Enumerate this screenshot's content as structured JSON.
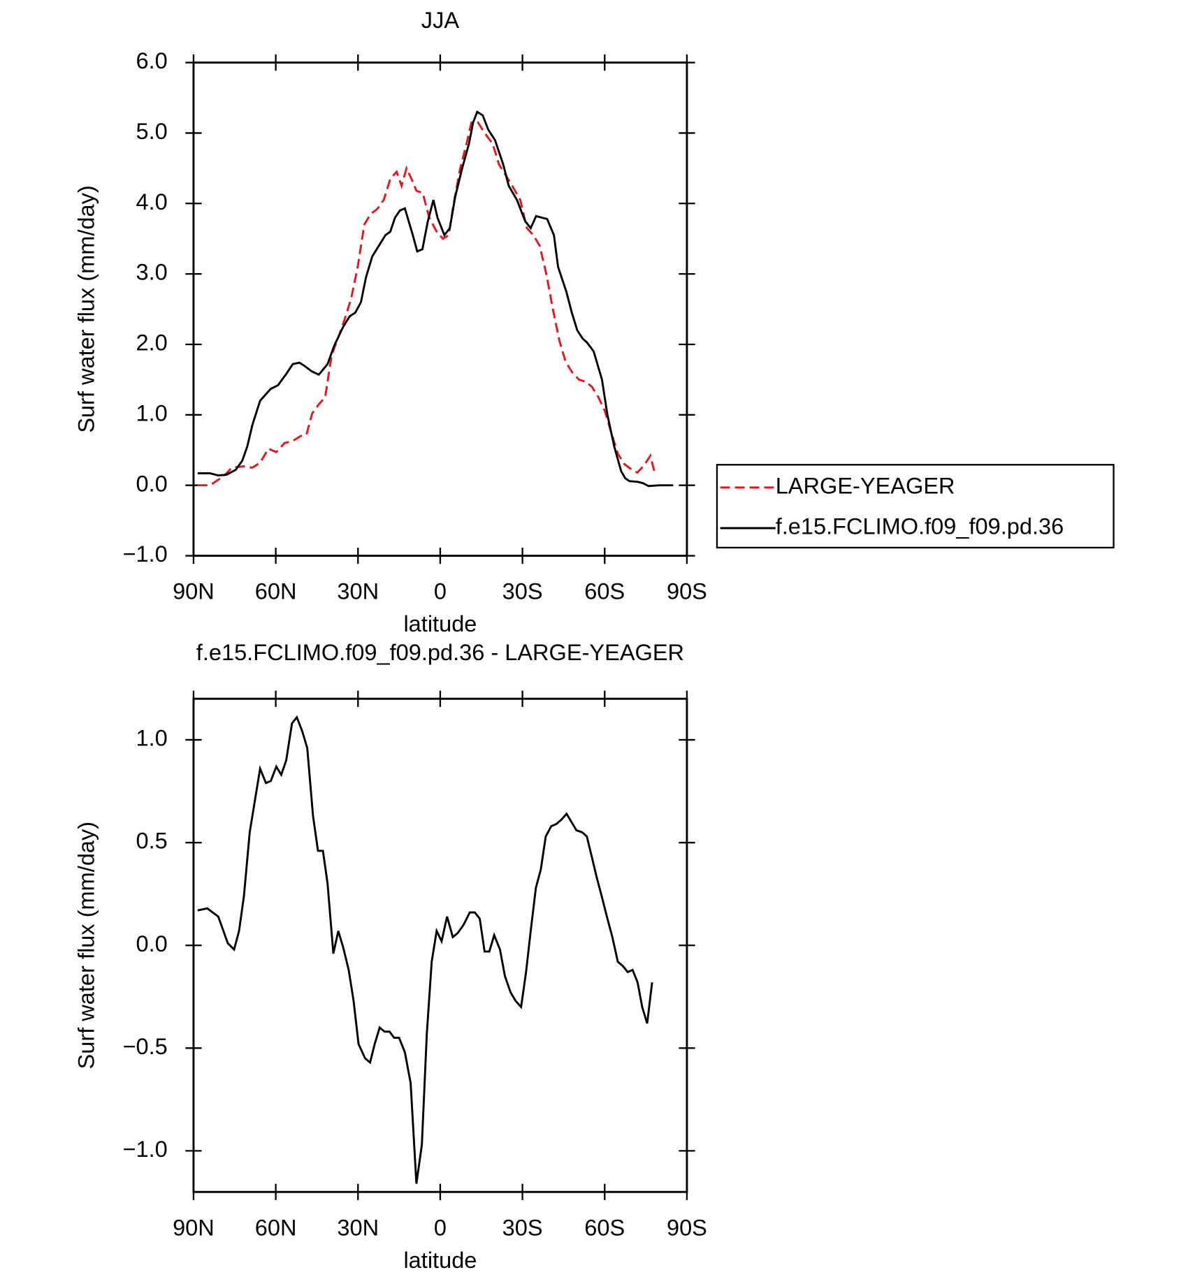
{
  "chart_data": [
    {
      "type": "line",
      "title": "JJA",
      "x_label": "latitude",
      "y_label": "Surf water flux (mm/day)",
      "xlim": [
        90,
        -90
      ],
      "xticks": [
        {
          "value": 90,
          "label": "90N"
        },
        {
          "value": 60,
          "label": "60N"
        },
        {
          "value": 30,
          "label": "30N"
        },
        0,
        {
          "value": -30,
          "label": "30S"
        },
        {
          "value": -60,
          "label": "60S"
        },
        {
          "value": -90,
          "label": "90S"
        }
      ],
      "ylim": [
        -1,
        6
      ],
      "yticks": [
        {
          "value": -1,
          "label": "−1.0"
        },
        {
          "value": 0,
          "label": "0.0"
        },
        {
          "value": 1,
          "label": "1.0"
        },
        {
          "value": 2,
          "label": "2.0"
        },
        {
          "value": 3,
          "label": "3.0"
        },
        {
          "value": 4,
          "label": "4.0"
        },
        {
          "value": 5,
          "label": "5.0"
        },
        {
          "value": 6,
          "label": "6.0"
        }
      ],
      "legend": "right",
      "series": [
        {
          "name": "LARGE-YEAGER",
          "color": "#e8141c",
          "dashed": true,
          "x": [
            88.5,
            84,
            79,
            76,
            71.6,
            68.6,
            65.7,
            62.7,
            59.8,
            56.8,
            53.8,
            50.9,
            48.8,
            46.7,
            44.3,
            42,
            39.6,
            37.2,
            34.9,
            32.5,
            30.1,
            27.7,
            25.4,
            23,
            20.6,
            18.2,
            15.9,
            14.1,
            12.3,
            10.5,
            8.7,
            6.4,
            4,
            1.3,
            -1,
            -3.1,
            -4.9,
            -7.3,
            -9.6,
            -11.4,
            -13.8,
            -16.2,
            -19.1,
            -21.5,
            -23.9,
            -26.3,
            -29.2,
            -31.6,
            -34,
            -36.3,
            -38.7,
            -41.1,
            -43.5,
            -45.8,
            -48.2,
            -50.6,
            -53,
            -55.3,
            -57.7,
            -60.1,
            -62.4,
            -64.8,
            -67.2,
            -69.6,
            -71.9,
            -74.3,
            -76.7,
            -78.4
          ],
          "values": [
            0,
            0,
            0.13,
            0.25,
            0.27,
            0.25,
            0.32,
            0.52,
            0.47,
            0.6,
            0.63,
            0.7,
            0.72,
            1.02,
            1.15,
            1.25,
            1.85,
            2.1,
            2.35,
            2.65,
            3.1,
            3.7,
            3.85,
            3.92,
            4.05,
            4.35,
            4.45,
            4.25,
            4.5,
            4.35,
            4.18,
            4.15,
            3.8,
            3.6,
            3.5,
            3.55,
            4.0,
            4.5,
            4.85,
            5.15,
            5.15,
            5.0,
            4.85,
            4.55,
            4.4,
            4.25,
            4.05,
            3.65,
            3.55,
            3.4,
            3.0,
            2.5,
            2.05,
            1.75,
            1.6,
            1.5,
            1.47,
            1.4,
            1.25,
            1.05,
            0.75,
            0.45,
            0.3,
            0.23,
            0.18,
            0.28,
            0.42,
            0.15
          ]
        },
        {
          "name": "f.e15.FCLIMO.f09_f09.pd.36",
          "color": "#000000",
          "dashed": false,
          "x": [
            88.5,
            84,
            81,
            78,
            74.6,
            72.2,
            70.4,
            68.6,
            65.7,
            61.8,
            59.2,
            56.2,
            53.8,
            51.4,
            49.7,
            47,
            44.3,
            41.1,
            38.7,
            35.4,
            33,
            31,
            28.9,
            27.1,
            24.8,
            22.4,
            20,
            18.2,
            16.5,
            14.7,
            12.9,
            10,
            8.4,
            6.5,
            4.5,
            2.5,
            1,
            -1.5,
            -3.5,
            -5.5,
            -8,
            -10.5,
            -12,
            -13.5,
            -15.5,
            -17.5,
            -20,
            -23,
            -25,
            -28,
            -31,
            -33,
            -35,
            -37,
            -39,
            -41.5,
            -43,
            -46,
            -48,
            -50,
            -52,
            -53.5,
            -56,
            -59,
            -61,
            -63.5,
            -66,
            -67.5,
            -69,
            -72,
            -74,
            -76,
            -80,
            -85
          ],
          "values": [
            0.17,
            0.17,
            0.14,
            0.15,
            0.22,
            0.35,
            0.55,
            0.85,
            1.2,
            1.37,
            1.42,
            1.58,
            1.72,
            1.74,
            1.7,
            1.62,
            1.57,
            1.72,
            1.98,
            2.25,
            2.4,
            2.45,
            2.6,
            2.95,
            3.25,
            3.4,
            3.55,
            3.6,
            3.8,
            3.9,
            3.93,
            3.55,
            3.32,
            3.35,
            3.75,
            4.05,
            3.8,
            3.55,
            3.65,
            4.1,
            4.5,
            4.85,
            5.15,
            5.3,
            5.25,
            5.05,
            4.9,
            4.55,
            4.25,
            4.05,
            3.75,
            3.65,
            3.82,
            3.8,
            3.78,
            3.55,
            3.1,
            2.75,
            2.45,
            2.2,
            2.08,
            2.03,
            1.9,
            1.5,
            1.0,
            0.55,
            0.2,
            0.1,
            0.06,
            0.05,
            0.03,
            -0.01,
            0,
            0
          ]
        }
      ]
    },
    {
      "type": "line",
      "title": "f.e15.FCLIMO.f09_f09.pd.36 - LARGE-YEAGER",
      "x_label": "latitude",
      "y_label": "Surf water flux (mm/day)",
      "xlim": [
        90,
        -90
      ],
      "xticks": [
        {
          "value": 90,
          "label": "90N"
        },
        {
          "value": 60,
          "label": "60N"
        },
        {
          "value": 30,
          "label": "30N"
        },
        0,
        {
          "value": -30,
          "label": "30S"
        },
        {
          "value": -60,
          "label": "60S"
        },
        {
          "value": -90,
          "label": "90S"
        }
      ],
      "ylim": [
        -1.2,
        1.2
      ],
      "yticks": [
        {
          "value": -1,
          "label": "−1.0"
        },
        {
          "value": -0.5,
          "label": "−0.5"
        },
        {
          "value": 0,
          "label": "0.0"
        },
        {
          "value": 0.5,
          "label": "0.5"
        },
        {
          "value": 1,
          "label": "1.0"
        }
      ],
      "series": [
        {
          "color": "#000000",
          "dashed": false,
          "x": [
            88.5,
            85,
            81,
            77.5,
            75.2,
            73.4,
            71.6,
            69.5,
            65.7,
            63.6,
            61.8,
            59.8,
            58,
            56.2,
            54.1,
            52.3,
            50.3,
            48.5,
            46.4,
            44.6,
            42.8,
            41.1,
            39,
            37.2,
            35.4,
            33.4,
            31.6,
            29.8,
            27.4,
            25.6,
            23.9,
            22.1,
            20.3,
            18.5,
            16.8,
            15,
            12.9,
            10.8,
            8.7,
            6.7,
            4.9,
            3.1,
            1.3,
            -0.5,
            -2.5,
            -4.6,
            -6.4,
            -8.5,
            -10.8,
            -12.6,
            -14.4,
            -16.2,
            -17.9,
            -19.7,
            -21.8,
            -23.6,
            -25.7,
            -27.5,
            -29.5,
            -31.3,
            -33.1,
            -34.9,
            -36.7,
            -38.5,
            -40.5,
            -42.3,
            -44.1,
            -46.1,
            -47.9,
            -49.7,
            -51.8,
            -53.5,
            -55.3,
            -57.1,
            -58.9,
            -61,
            -62.8,
            -64.8,
            -66.6,
            -68.4,
            -70.2,
            -72,
            -73.7,
            -75.5,
            -77.3
          ],
          "values": [
            0.17,
            0.18,
            0.14,
            0.01,
            -0.02,
            0.07,
            0.24,
            0.55,
            0.86,
            0.79,
            0.8,
            0.87,
            0.83,
            0.9,
            1.08,
            1.11,
            1.04,
            0.96,
            0.63,
            0.46,
            0.46,
            0.3,
            -0.04,
            0.07,
            -0.01,
            -0.12,
            -0.27,
            -0.48,
            -0.55,
            -0.57,
            -0.48,
            -0.4,
            -0.42,
            -0.42,
            -0.45,
            -0.45,
            -0.52,
            -0.67,
            -1.16,
            -0.97,
            -0.43,
            -0.08,
            0.07,
            0.02,
            0.14,
            0.04,
            0.06,
            0.1,
            0.16,
            0.16,
            0.13,
            -0.03,
            -0.03,
            0.05,
            -0.02,
            -0.15,
            -0.23,
            -0.27,
            -0.3,
            -0.13,
            0.08,
            0.28,
            0.37,
            0.53,
            0.58,
            0.59,
            0.61,
            0.64,
            0.6,
            0.56,
            0.55,
            0.53,
            0.43,
            0.33,
            0.24,
            0.13,
            0.04,
            -0.08,
            -0.1,
            -0.13,
            -0.12,
            -0.18,
            -0.3,
            -0.38,
            -0.18
          ]
        }
      ]
    }
  ]
}
